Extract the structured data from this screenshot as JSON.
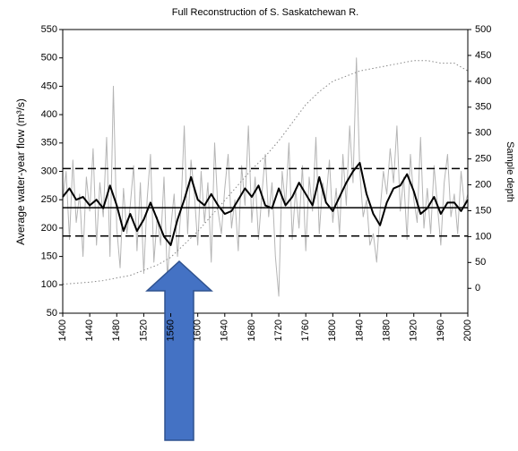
{
  "chart_data": {
    "type": "line",
    "title": "Full Reconstruction of S. Saskatchewan R.",
    "ylabel": "Average water-year flow (m³/s)",
    "y2label": "Sample depth",
    "xlim": [
      1400,
      2000
    ],
    "xticks": [
      1400,
      1440,
      1480,
      1520,
      1560,
      1600,
      1640,
      1680,
      1720,
      1760,
      1800,
      1840,
      1880,
      1920,
      1960,
      2000
    ],
    "ylim": [
      50,
      550
    ],
    "yticks": [
      50,
      100,
      150,
      200,
      250,
      300,
      350,
      400,
      450,
      500,
      550
    ],
    "y2lim": [
      -48,
      500
    ],
    "y2ticks": [
      0,
      50,
      100,
      150,
      200,
      250,
      300,
      350,
      400,
      450,
      500
    ],
    "reference_lines": [
      {
        "value": 236,
        "style": "solid"
      },
      {
        "value": 305,
        "style": "dashed"
      },
      {
        "value": 186,
        "style": "dashed"
      }
    ],
    "series": [
      {
        "color": "#b5b5b5",
        "width": 1,
        "style": "solid",
        "x": [
          1400,
          1405,
          1410,
          1415,
          1420,
          1425,
          1430,
          1435,
          1440,
          1445,
          1450,
          1455,
          1460,
          1465,
          1470,
          1475,
          1480,
          1485,
          1490,
          1495,
          1500,
          1505,
          1510,
          1515,
          1520,
          1525,
          1530,
          1535,
          1540,
          1545,
          1550,
          1555,
          1560,
          1565,
          1570,
          1575,
          1580,
          1585,
          1590,
          1595,
          1600,
          1605,
          1610,
          1615,
          1620,
          1625,
          1630,
          1635,
          1640,
          1645,
          1650,
          1655,
          1660,
          1665,
          1670,
          1675,
          1680,
          1685,
          1690,
          1695,
          1700,
          1705,
          1710,
          1715,
          1720,
          1725,
          1730,
          1735,
          1740,
          1745,
          1750,
          1755,
          1760,
          1765,
          1770,
          1775,
          1780,
          1785,
          1790,
          1795,
          1800,
          1805,
          1810,
          1815,
          1820,
          1825,
          1830,
          1835,
          1840,
          1845,
          1850,
          1855,
          1860,
          1865,
          1870,
          1875,
          1880,
          1885,
          1890,
          1895,
          1900,
          1905,
          1910,
          1915,
          1920,
          1925,
          1930,
          1935,
          1940,
          1945,
          1950,
          1955,
          1960,
          1965,
          1970,
          1975,
          1980,
          1985,
          1990,
          1995,
          2000
        ],
        "values": [
          250,
          300,
          180,
          320,
          210,
          260,
          150,
          290,
          230,
          340,
          170,
          280,
          220,
          360,
          150,
          450,
          200,
          130,
          270,
          190,
          240,
          310,
          160,
          280,
          120,
          250,
          330,
          140,
          220,
          170,
          290,
          110,
          200,
          260,
          150,
          230,
          380,
          190,
          320,
          260,
          170,
          300,
          210,
          280,
          140,
          350,
          230,
          190,
          270,
          330,
          200,
          250,
          160,
          310,
          240,
          380,
          210,
          290,
          180,
          260,
          330,
          220,
          280,
          150,
          80,
          300,
          240,
          350,
          180,
          270,
          200,
          310,
          160,
          290,
          230,
          360,
          190,
          280,
          250,
          320,
          210,
          270,
          190,
          330,
          240,
          380,
          280,
          500,
          300,
          220,
          250,
          170,
          190,
          140,
          230,
          300,
          260,
          340,
          280,
          380,
          230,
          290,
          180,
          330,
          250,
          210,
          360,
          200,
          270,
          190,
          310,
          240,
          170,
          280,
          330,
          220,
          260,
          190,
          300,
          240,
          260
        ]
      },
      {
        "color": "#000000",
        "width": 2,
        "style": "solid",
        "x": [
          1400,
          1410,
          1420,
          1430,
          1440,
          1450,
          1460,
          1470,
          1480,
          1490,
          1500,
          1510,
          1520,
          1530,
          1540,
          1550,
          1560,
          1570,
          1580,
          1590,
          1600,
          1610,
          1620,
          1630,
          1640,
          1650,
          1660,
          1670,
          1680,
          1690,
          1700,
          1710,
          1720,
          1730,
          1740,
          1750,
          1760,
          1770,
          1780,
          1790,
          1800,
          1810,
          1820,
          1830,
          1840,
          1850,
          1860,
          1870,
          1880,
          1890,
          1900,
          1910,
          1920,
          1930,
          1940,
          1950,
          1960,
          1970,
          1980,
          1990,
          2000
        ],
        "values": [
          255,
          270,
          250,
          255,
          240,
          250,
          235,
          275,
          240,
          195,
          225,
          195,
          215,
          245,
          215,
          185,
          170,
          215,
          250,
          290,
          250,
          240,
          260,
          240,
          225,
          230,
          250,
          270,
          255,
          275,
          240,
          235,
          270,
          240,
          255,
          280,
          260,
          240,
          290,
          245,
          230,
          255,
          280,
          300,
          315,
          260,
          225,
          205,
          245,
          270,
          275,
          295,
          265,
          225,
          235,
          255,
          225,
          245,
          245,
          230,
          250
        ]
      },
      {
        "color": "#888888",
        "width": 1,
        "style": "dotted",
        "axis": "y2",
        "x": [
          1400,
          1420,
          1440,
          1460,
          1480,
          1500,
          1520,
          1540,
          1560,
          1580,
          1600,
          1620,
          1640,
          1660,
          1680,
          1700,
          1720,
          1740,
          1760,
          1780,
          1800,
          1820,
          1840,
          1860,
          1880,
          1900,
          1920,
          1940,
          1960,
          1980,
          2000
        ],
        "values": [
          8,
          10,
          12,
          15,
          20,
          25,
          35,
          45,
          60,
          85,
          110,
          140,
          170,
          200,
          230,
          255,
          285,
          320,
          355,
          380,
          400,
          410,
          420,
          425,
          430,
          435,
          440,
          440,
          435,
          435,
          420
        ]
      }
    ]
  }
}
